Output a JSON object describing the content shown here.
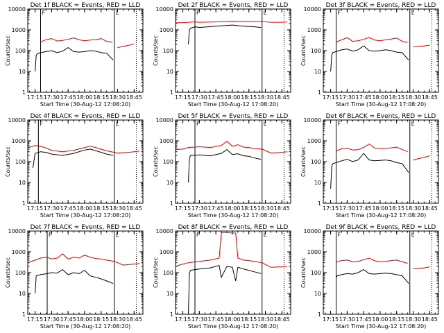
{
  "colors": {
    "events": "#000000",
    "lld": "#e00000",
    "background": "#ffffff",
    "axes": "#000000"
  },
  "chart_data": [
    {
      "type": "line",
      "title": "Det 1f BLACK = Events, RED = LLD",
      "xlabel": "Start Time (30-Aug-12 17:08:20)",
      "ylabel": "Counts/sec",
      "y_scale": "log",
      "ylim": [
        1,
        10000
      ],
      "yticks": [
        "1",
        "10",
        "100",
        "1000",
        "10000"
      ],
      "xticks": [
        "17:15",
        "17:30",
        "17:45",
        "18:00",
        "18:15",
        "18:30",
        "18:45"
      ],
      "marker_lines": [
        {
          "label": "F",
          "x": "17:20"
        },
        {
          "label": "L",
          "x": "18:27"
        }
      ],
      "dotted_lines": [
        "18:47"
      ],
      "series": [
        {
          "name": "LLD",
          "x": [
            "17:20",
            "17:25",
            "17:30",
            "17:35",
            "17:40",
            "17:45",
            "17:50",
            "17:55",
            "18:00",
            "18:05",
            "18:10",
            "18:15",
            "18:20",
            "18:25",
            "18:27",
            "18:30",
            "18:35",
            "18:40",
            "18:45"
          ],
          "values": [
            260,
            340,
            380,
            290,
            310,
            350,
            410,
            330,
            300,
            320,
            340,
            380,
            280,
            260,
            null,
            140,
            160,
            180,
            210
          ]
        },
        {
          "name": "Events",
          "x": [
            "17:15",
            "17:16",
            "17:17",
            "17:20",
            "17:25",
            "17:30",
            "17:35",
            "17:40",
            "17:45",
            "17:50",
            "17:55",
            "18:00",
            "18:05",
            "18:10",
            "18:15",
            "18:20",
            "18:25",
            "18:26"
          ],
          "values": [
            10,
            60,
            70,
            80,
            90,
            100,
            80,
            95,
            140,
            90,
            85,
            90,
            100,
            95,
            80,
            75,
            40,
            35
          ]
        }
      ]
    },
    {
      "type": "line",
      "title": "Det 2f BLACK = Events, RED = LLD",
      "xlabel": "Start Time (30-Aug-12 17:08:20)",
      "ylabel": "Counts/sec",
      "y_scale": "log",
      "ylim": [
        1,
        10000
      ],
      "yticks": [
        "1",
        "10",
        "100",
        "1000",
        "10000"
      ],
      "xticks": [
        "17:15",
        "17:30",
        "17:45",
        "18:00",
        "18:15",
        "18:30",
        "18:45"
      ],
      "marker_lines": [
        {
          "label": "F",
          "x": "17:26"
        },
        {
          "label": "L",
          "x": "18:27"
        }
      ],
      "dotted_lines": [
        "18:47"
      ],
      "series": [
        {
          "name": "LLD",
          "x": [
            "17:08",
            "17:15",
            "17:20",
            "17:26",
            "17:30",
            "17:45",
            "18:00",
            "18:15",
            "18:27",
            "18:35",
            "18:45",
            "18:50"
          ],
          "values": [
            2200,
            2200,
            2300,
            2400,
            2300,
            2400,
            2600,
            2500,
            2500,
            2300,
            2300,
            2400
          ]
        },
        {
          "name": "Events",
          "x": [
            "17:20",
            "17:21",
            "17:22",
            "17:26",
            "17:30",
            "17:45",
            "18:00",
            "18:10",
            "18:20",
            "18:26"
          ],
          "values": [
            200,
            1000,
            1200,
            1400,
            1300,
            1500,
            1700,
            1500,
            1400,
            1300
          ]
        }
      ]
    },
    {
      "type": "line",
      "title": "Det 3f BLACK = Events, RED = LLD",
      "xlabel": "Start Time (30-Aug-12 17:08:20)",
      "ylabel": "Counts/sec",
      "y_scale": "log",
      "ylim": [
        1,
        10000
      ],
      "yticks": [
        "1",
        "10",
        "100",
        "1000",
        "10000"
      ],
      "xticks": [
        "17:15",
        "17:30",
        "17:45",
        "18:00",
        "18:15",
        "18:30",
        "18:45"
      ],
      "marker_lines": [
        {
          "label": "F",
          "x": "17:20"
        },
        {
          "label": "L",
          "x": "18:27"
        }
      ],
      "dotted_lines": [
        "18:47"
      ],
      "series": [
        {
          "name": "LLD",
          "x": [
            "17:20",
            "17:25",
            "17:30",
            "17:35",
            "17:40",
            "17:45",
            "17:50",
            "17:55",
            "18:00",
            "18:05",
            "18:10",
            "18:15",
            "18:20",
            "18:25",
            "18:27",
            "18:30",
            "18:35",
            "18:40",
            "18:45"
          ],
          "values": [
            260,
            330,
            420,
            280,
            300,
            350,
            430,
            320,
            300,
            330,
            360,
            400,
            280,
            250,
            null,
            150,
            160,
            170,
            180
          ]
        },
        {
          "name": "Events",
          "x": [
            "17:15",
            "17:16",
            "17:17",
            "17:20",
            "17:25",
            "17:30",
            "17:35",
            "17:40",
            "17:45",
            "17:50",
            "17:55",
            "18:00",
            "18:05",
            "18:10",
            "18:15",
            "18:20",
            "18:25",
            "18:26"
          ],
          "values": [
            10,
            60,
            80,
            90,
            110,
            120,
            95,
            110,
            170,
            100,
            95,
            100,
            110,
            100,
            85,
            80,
            40,
            35
          ]
        }
      ]
    },
    {
      "type": "line",
      "title": "Det 4f BLACK = Events, RED = LLD",
      "xlabel": "Start Time (30-Aug-12 17:08:20)",
      "ylabel": "Counts/sec",
      "y_scale": "log",
      "ylim": [
        1,
        10000
      ],
      "yticks": [
        "1",
        "10",
        "100",
        "1000",
        "10000"
      ],
      "xticks": [
        "17:15",
        "17:30",
        "17:45",
        "18:00",
        "18:15",
        "18:30",
        "18:45"
      ],
      "marker_lines": [
        {
          "label": "F",
          "x": "17:18"
        },
        {
          "label": "L",
          "x": "18:27"
        }
      ],
      "dotted_lines": [
        "18:47"
      ],
      "series": [
        {
          "name": "LLD",
          "x": [
            "17:08",
            "17:15",
            "17:20",
            "17:25",
            "17:30",
            "17:40",
            "17:50",
            "18:00",
            "18:05",
            "18:10",
            "18:20",
            "18:30",
            "18:40",
            "18:45",
            "18:50"
          ],
          "values": [
            450,
            600,
            550,
            450,
            350,
            300,
            350,
            480,
            550,
            480,
            330,
            260,
            280,
            300,
            320
          ]
        },
        {
          "name": "Events",
          "x": [
            "17:13",
            "17:15",
            "17:20",
            "17:25",
            "17:30",
            "17:40",
            "17:50",
            "18:00",
            "18:05",
            "18:10",
            "18:20",
            "18:26"
          ],
          "values": [
            50,
            250,
            300,
            280,
            230,
            200,
            250,
            360,
            400,
            340,
            230,
            200
          ]
        }
      ]
    },
    {
      "type": "line",
      "title": "Det 5f BLACK = Events, RED = LLD",
      "xlabel": "Start Time (30-Aug-12 17:08:20)",
      "ylabel": "Counts/sec",
      "y_scale": "log",
      "ylim": [
        1,
        10000
      ],
      "yticks": [
        "1",
        "10",
        "100",
        "1000",
        "10000"
      ],
      "xticks": [
        "17:15",
        "17:30",
        "17:45",
        "18:00",
        "18:15",
        "18:30",
        "18:45"
      ],
      "marker_lines": [
        {
          "label": "F",
          "x": "17:26"
        },
        {
          "label": "L",
          "x": "18:27"
        }
      ],
      "dotted_lines": [
        "18:47"
      ],
      "series": [
        {
          "name": "LLD",
          "x": [
            "17:08",
            "17:15",
            "17:20",
            "17:26",
            "17:30",
            "17:40",
            "17:50",
            "17:55",
            "18:00",
            "18:05",
            "18:10",
            "18:15",
            "18:20",
            "18:27",
            "18:35",
            "18:45",
            "18:50"
          ],
          "values": [
            380,
            400,
            480,
            500,
            520,
            480,
            600,
            950,
            550,
            650,
            500,
            480,
            420,
            400,
            260,
            280,
            300
          ]
        },
        {
          "name": "Events",
          "x": [
            "17:20",
            "17:21",
            "17:22",
            "17:26",
            "17:30",
            "17:40",
            "17:50",
            "17:55",
            "18:00",
            "18:05",
            "18:10",
            "18:15",
            "18:20",
            "18:26"
          ],
          "values": [
            10,
            150,
            200,
            200,
            210,
            190,
            250,
            380,
            220,
            240,
            190,
            180,
            150,
            130
          ]
        }
      ]
    },
    {
      "type": "line",
      "title": "Det 6f BLACK = Events, RED = LLD",
      "xlabel": "Start Time (30-Aug-12 17:08:20)",
      "ylabel": "Counts/sec",
      "y_scale": "log",
      "ylim": [
        1,
        10000
      ],
      "yticks": [
        "1",
        "10",
        "100",
        "1000",
        "10000"
      ],
      "xticks": [
        "17:15",
        "17:30",
        "17:45",
        "18:00",
        "18:15",
        "18:30",
        "18:45"
      ],
      "marker_lines": [
        {
          "label": "F",
          "x": "17:20"
        },
        {
          "label": "L",
          "x": "18:27"
        }
      ],
      "dotted_lines": [
        "18:47"
      ],
      "series": [
        {
          "name": "LLD",
          "x": [
            "17:20",
            "17:25",
            "17:30",
            "17:35",
            "17:40",
            "17:45",
            "17:50",
            "17:55",
            "18:00",
            "18:05",
            "18:10",
            "18:15",
            "18:20",
            "18:25",
            "18:27",
            "18:30",
            "18:35",
            "18:40",
            "18:45"
          ],
          "values": [
            320,
            420,
            450,
            360,
            380,
            480,
            700,
            450,
            420,
            430,
            460,
            500,
            380,
            300,
            null,
            120,
            140,
            160,
            190
          ]
        },
        {
          "name": "Events",
          "x": [
            "17:15",
            "17:16",
            "17:17",
            "17:20",
            "17:25",
            "17:30",
            "17:35",
            "17:40",
            "17:45",
            "17:50",
            "17:55",
            "18:00",
            "18:05",
            "18:10",
            "18:15",
            "18:20",
            "18:25",
            "18:26"
          ],
          "values": [
            5,
            60,
            80,
            90,
            110,
            130,
            100,
            120,
            250,
            120,
            110,
            115,
            120,
            110,
            90,
            80,
            35,
            30
          ]
        }
      ]
    },
    {
      "type": "line",
      "title": "Det 7f BLACK = Events, RED = LLD",
      "xlabel": "Start Time (30-Aug-12 17:08:20)",
      "ylabel": "Counts/sec",
      "y_scale": "log",
      "ylim": [
        1,
        10000
      ],
      "yticks": [
        "1",
        "10",
        "100",
        "1000",
        "10000"
      ],
      "xticks": [
        "17:15",
        "17:30",
        "17:45",
        "18:00",
        "18:15",
        "18:30",
        "18:45"
      ],
      "marker_lines": [
        {
          "label": "F",
          "x": "17:26"
        },
        {
          "label": "L",
          "x": "18:27"
        }
      ],
      "dotted_lines": [
        "18:47"
      ],
      "series": [
        {
          "name": "LLD",
          "x": [
            "17:08",
            "17:15",
            "17:20",
            "17:26",
            "17:30",
            "17:35",
            "17:40",
            "17:45",
            "17:50",
            "17:55",
            "18:00",
            "18:05",
            "18:10",
            "18:15",
            "18:20",
            "18:27",
            "18:35",
            "18:45",
            "18:50"
          ],
          "values": [
            300,
            400,
            500,
            550,
            450,
            500,
            800,
            450,
            550,
            500,
            700,
            550,
            480,
            450,
            400,
            350,
            230,
            260,
            280
          ]
        },
        {
          "name": "Events",
          "x": [
            "17:15",
            "17:16",
            "17:20",
            "17:26",
            "17:30",
            "17:35",
            "17:40",
            "17:45",
            "17:50",
            "17:55",
            "18:00",
            "18:05",
            "18:10",
            "18:15",
            "18:20",
            "18:26"
          ],
          "values": [
            10,
            70,
            80,
            90,
            100,
            95,
            140,
            80,
            100,
            90,
            130,
            70,
            60,
            50,
            40,
            30
          ]
        }
      ]
    },
    {
      "type": "line",
      "title": "Det 8f BLACK = Events, RED = LLD",
      "xlabel": "Start Time (30-Aug-12 17:08:20)",
      "ylabel": "Counts/sec",
      "y_scale": "log",
      "ylim": [
        1,
        10000
      ],
      "yticks": [
        "1",
        "10",
        "100",
        "1000",
        "10000"
      ],
      "xticks": [
        "17:15",
        "17:30",
        "17:45",
        "18:00",
        "18:15",
        "18:30",
        "18:45"
      ],
      "marker_lines": [
        {
          "label": "F",
          "x": "17:26"
        },
        {
          "label": "L",
          "x": "18:27"
        }
      ],
      "dotted_lines": [
        "18:47"
      ],
      "series": [
        {
          "name": "LLD",
          "x": [
            "17:08",
            "17:15",
            "17:20",
            "17:26",
            "17:30",
            "17:40",
            "17:48",
            "17:50",
            "17:52",
            "18:00",
            "18:03",
            "18:05",
            "18:10",
            "18:15",
            "18:20",
            "18:27",
            "18:35",
            "18:45",
            "18:50"
          ],
          "values": [
            200,
            260,
            300,
            330,
            350,
            400,
            500,
            8000,
            8500,
            8000,
            8000,
            500,
            400,
            380,
            350,
            300,
            180,
            190,
            200
          ]
        },
        {
          "name": "Events",
          "x": [
            "17:20",
            "17:21",
            "17:22",
            "17:26",
            "17:30",
            "17:40",
            "17:48",
            "17:50",
            "17:55",
            "18:00",
            "18:03",
            "18:05",
            "18:10",
            "18:15",
            "18:20",
            "18:26"
          ],
          "values": [
            1,
            100,
            130,
            140,
            150,
            170,
            220,
            60,
            200,
            180,
            40,
            180,
            150,
            130,
            110,
            90
          ]
        }
      ]
    },
    {
      "type": "line",
      "title": "Det 9f BLACK = Events, RED = LLD",
      "xlabel": "Start Time (30-Aug-12 17:08:20)",
      "ylabel": "Counts/sec",
      "y_scale": "log",
      "ylim": [
        1,
        10000
      ],
      "yticks": [
        "1",
        "10",
        "100",
        "1000",
        "10000"
      ],
      "xticks": [
        "17:15",
        "17:30",
        "17:45",
        "18:00",
        "18:15",
        "18:30",
        "18:45"
      ],
      "marker_lines": [
        {
          "label": "F",
          "x": "17:20"
        },
        {
          "label": "L",
          "x": "18:27"
        }
      ],
      "dotted_lines": [
        "18:47"
      ],
      "series": [
        {
          "name": "LLD",
          "x": [
            "17:20",
            "17:25",
            "17:30",
            "17:35",
            "17:40",
            "17:45",
            "17:50",
            "17:55",
            "18:00",
            "18:05",
            "18:10",
            "18:15",
            "18:20",
            "18:25",
            "18:27",
            "18:30",
            "18:35",
            "18:40",
            "18:45"
          ],
          "values": [
            320,
            380,
            400,
            330,
            350,
            420,
            500,
            370,
            340,
            350,
            380,
            400,
            330,
            280,
            null,
            150,
            160,
            170,
            190
          ]
        },
        {
          "name": "Events",
          "x": [
            "17:20",
            "17:21",
            "17:25",
            "17:30",
            "17:35",
            "17:40",
            "17:45",
            "17:50",
            "17:55",
            "18:00",
            "18:05",
            "18:10",
            "18:15",
            "18:20",
            "18:25",
            "18:26"
          ],
          "values": [
            60,
            70,
            80,
            90,
            85,
            100,
            140,
            90,
            85,
            90,
            95,
            90,
            80,
            70,
            35,
            30
          ]
        }
      ]
    }
  ]
}
